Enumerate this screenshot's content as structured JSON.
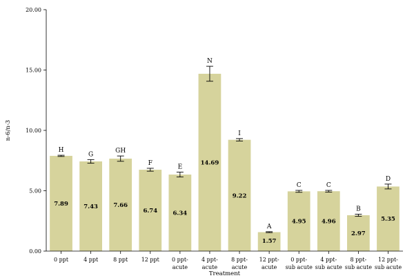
{
  "chart_data": {
    "type": "bar",
    "xlabel": "Treatment",
    "ylabel": "n-6/n-3",
    "ylim": [
      0,
      20
    ],
    "yticks": [
      "0.00",
      "5.00",
      "10.00",
      "15.00",
      "20.00"
    ],
    "grid": false,
    "bar_color": "#d6d39c",
    "categories": [
      [
        "0 ppt"
      ],
      [
        "4 ppt"
      ],
      [
        "8 ppt"
      ],
      [
        "12 ppt"
      ],
      [
        "0 ppt-",
        "acute"
      ],
      [
        "4 ppt-",
        "acute"
      ],
      [
        "8 ppt-",
        "acute"
      ],
      [
        "12 ppt-",
        "acute"
      ],
      [
        "0 ppt-",
        "sub acute"
      ],
      [
        "4 ppt-",
        "sub acute"
      ],
      [
        "8 ppt-",
        "sub acute"
      ],
      [
        "12 ppt-",
        "sub acute"
      ]
    ],
    "values": [
      7.89,
      7.43,
      7.66,
      6.74,
      6.34,
      14.69,
      9.22,
      1.57,
      4.95,
      4.96,
      2.97,
      5.35
    ],
    "value_labels": [
      "7.89",
      "7.43",
      "7.66",
      "6.74",
      "6.34",
      "14.69",
      "9.22",
      "1.57",
      "4.95",
      "4.96",
      "2.97",
      "5.35"
    ],
    "errors": [
      0.05,
      0.15,
      0.22,
      0.12,
      0.2,
      0.62,
      0.1,
      0.04,
      0.08,
      0.07,
      0.09,
      0.2
    ],
    "letters": [
      "H",
      "G",
      "GH",
      "F",
      "E",
      "N",
      "I",
      "A",
      "C",
      "C",
      "B",
      "D"
    ]
  }
}
